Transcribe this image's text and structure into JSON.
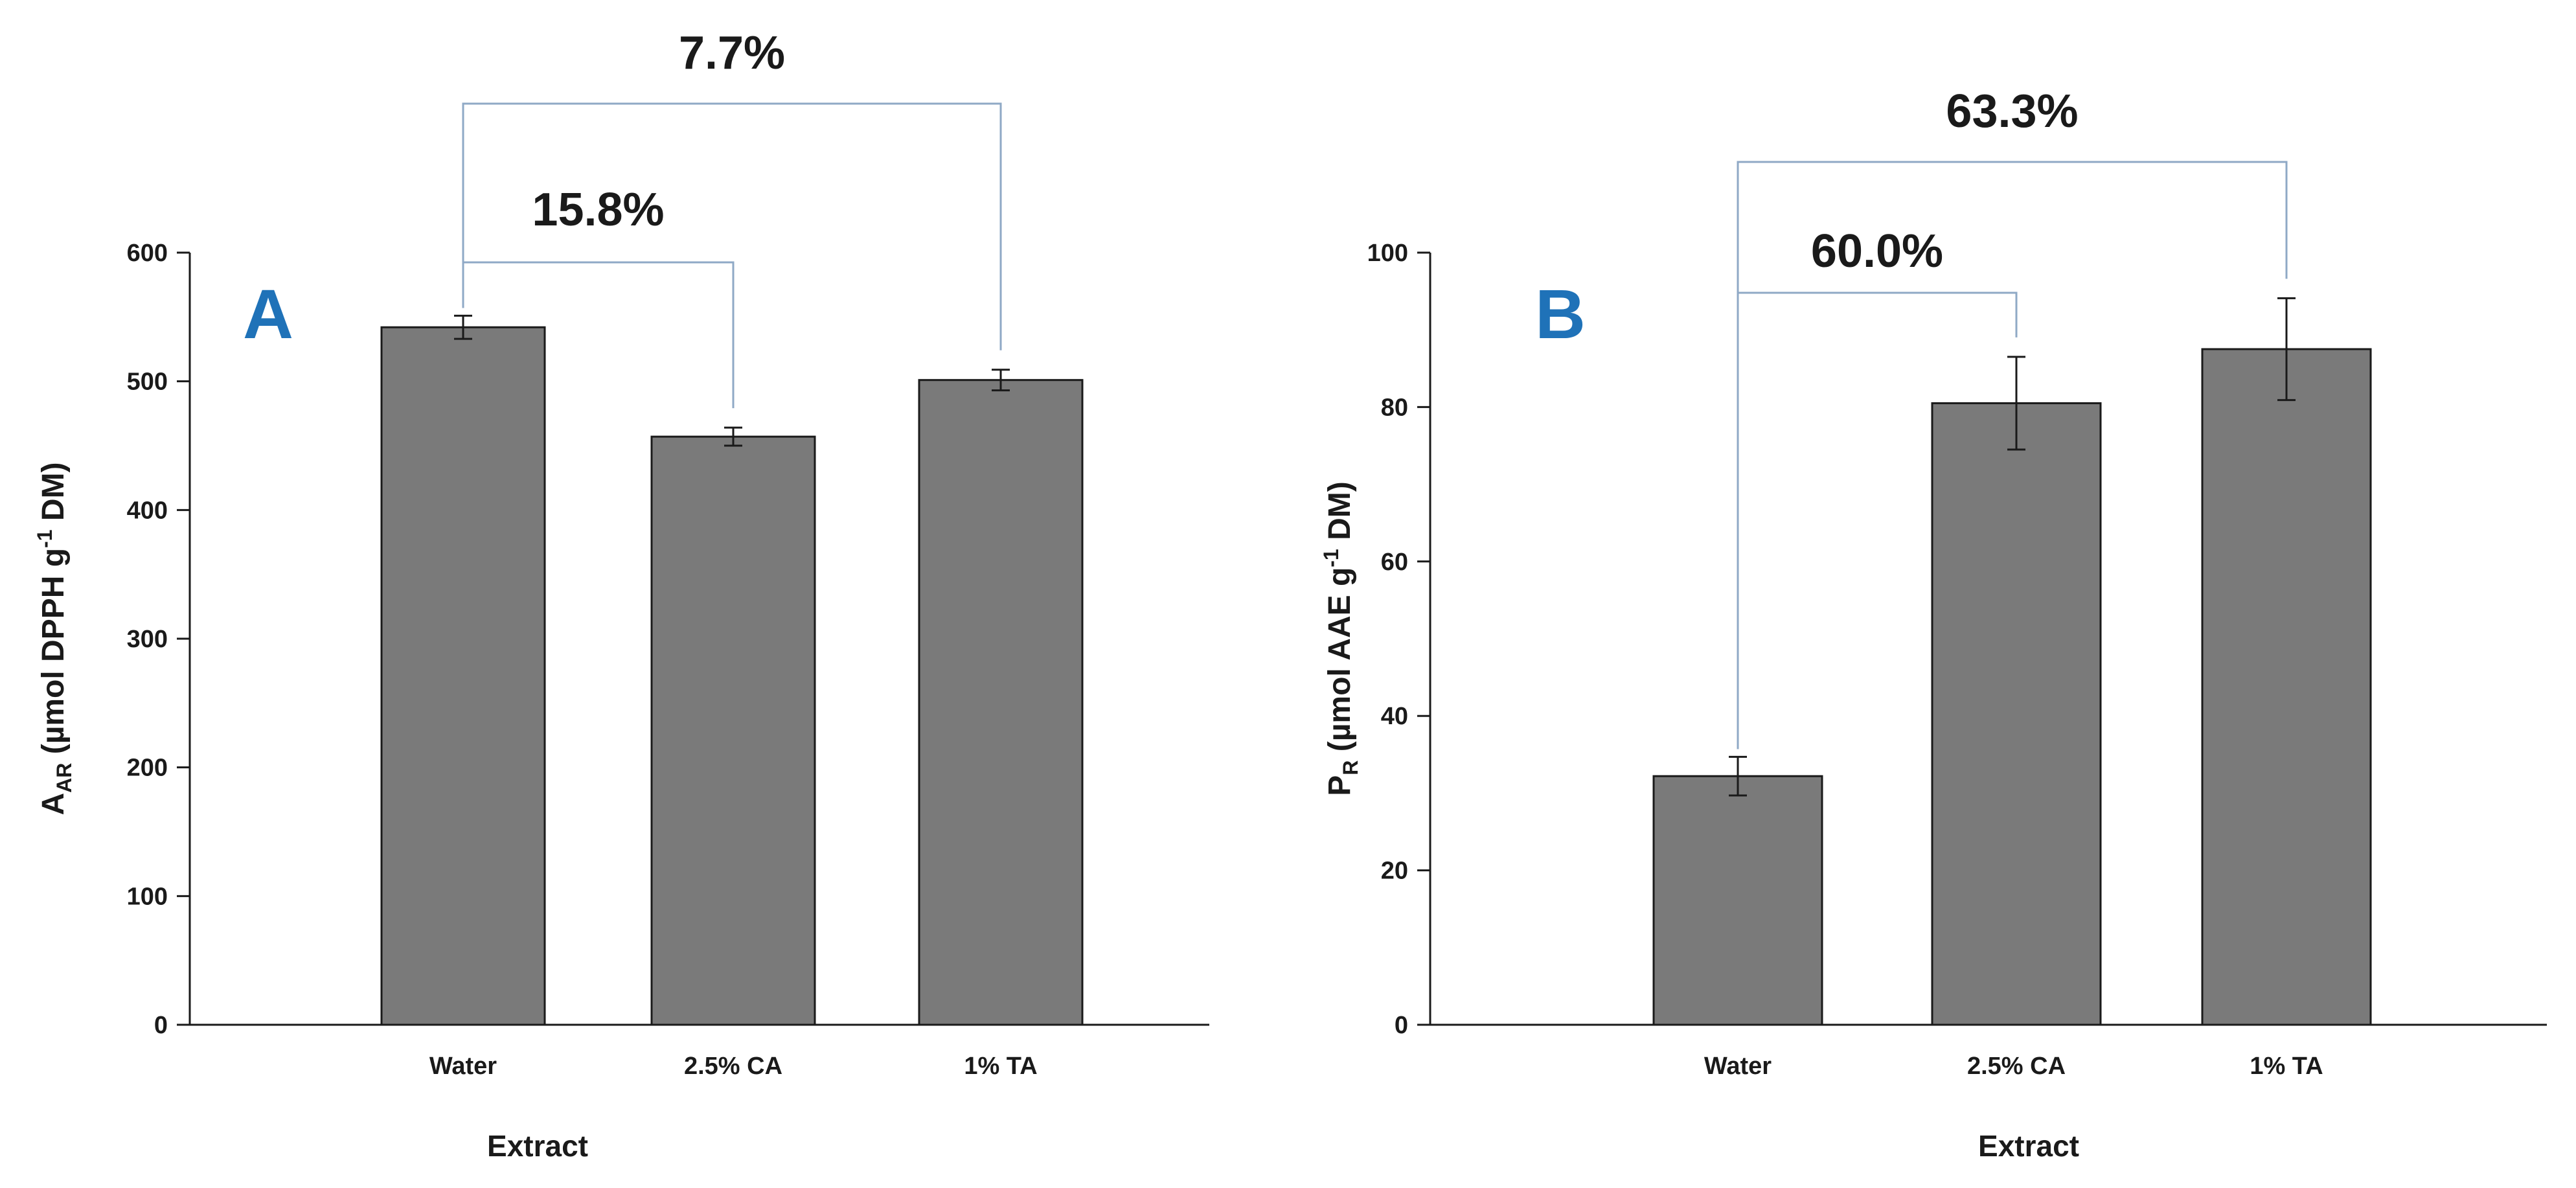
{
  "colors": {
    "bar_fill": "#7a7a7a",
    "bar_stroke": "#1a1a1a",
    "bracket": "#8fa9c6",
    "panel_label": "#1f72b8"
  },
  "chart_data": [
    {
      "type": "bar",
      "panel_label": "A",
      "categories": [
        "Water",
        "2.5% CA",
        "1% TA"
      ],
      "values": [
        542,
        457,
        501
      ],
      "errors": [
        9,
        7,
        8
      ],
      "xlabel": "Extract",
      "ylabel": {
        "main": "A",
        "sub": "AR",
        "rest": " (µmol DPPH g",
        "sup": "-1",
        "tail": " DM)"
      },
      "ylim": [
        0,
        600
      ],
      "yticks": [
        0,
        100,
        200,
        300,
        400,
        500,
        600
      ],
      "annotations": [
        {
          "label": "15.8%",
          "from": "Water",
          "to": "2.5% CA"
        },
        {
          "label": "7.7%",
          "from": "Water",
          "to": "1% TA"
        }
      ]
    },
    {
      "type": "bar",
      "panel_label": "B",
      "categories": [
        "Water",
        "2.5% CA",
        "1% TA"
      ],
      "values": [
        32.2,
        80.5,
        87.5
      ],
      "errors": [
        2.5,
        6.0,
        6.6
      ],
      "xlabel": "Extract",
      "ylabel": {
        "main": "P",
        "sub": "R",
        "rest": " (µmol AAE g",
        "sup": "-1",
        "tail": " DM)"
      },
      "ylim": [
        0,
        100
      ],
      "yticks": [
        0,
        20,
        40,
        60,
        80,
        100
      ],
      "annotations": [
        {
          "label": "60.0%",
          "from": "Water",
          "to": "2.5% CA"
        },
        {
          "label": "63.3%",
          "from": "Water",
          "to": "1% TA"
        }
      ]
    }
  ]
}
